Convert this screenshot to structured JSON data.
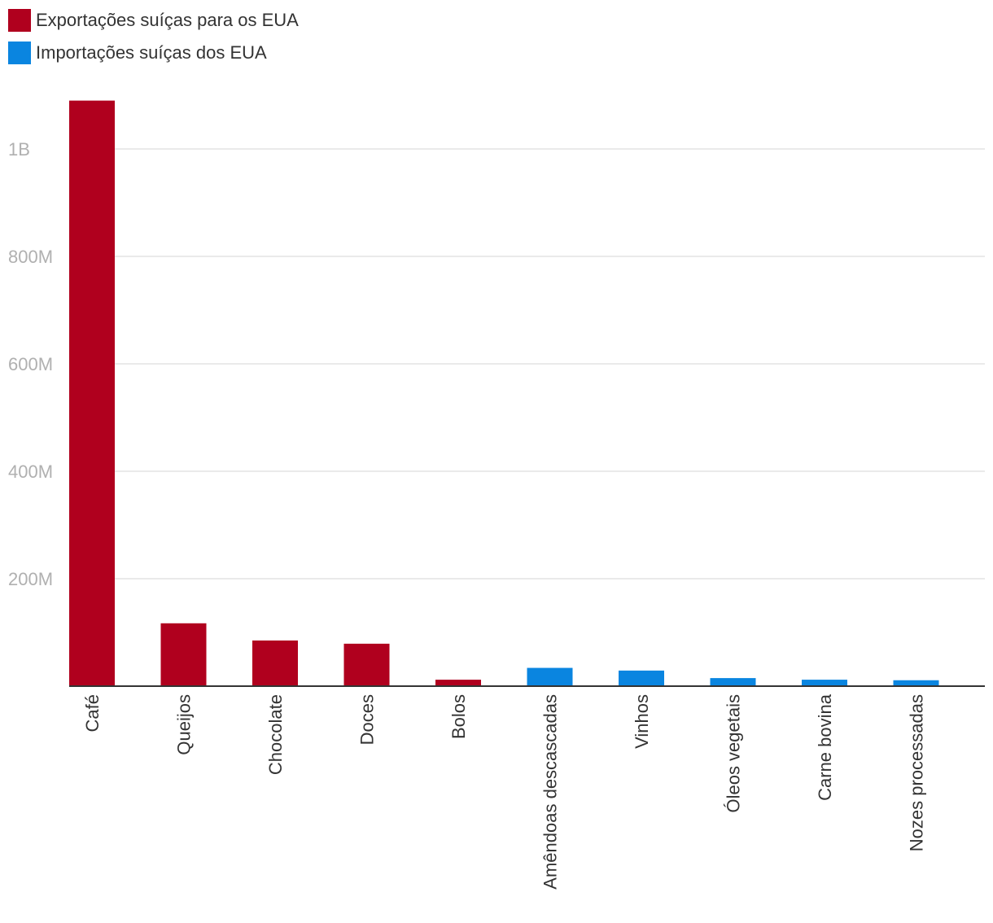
{
  "chart_data": {
    "type": "bar",
    "title": "",
    "xlabel": "",
    "ylabel": "",
    "ylim": [
      0,
      1090000000
    ],
    "yticks": [
      {
        "value": 200000000,
        "label": "200M"
      },
      {
        "value": 400000000,
        "label": "400M"
      },
      {
        "value": 600000000,
        "label": "600M"
      },
      {
        "value": 800000000,
        "label": "800M"
      },
      {
        "value": 1000000000,
        "label": "1B"
      }
    ],
    "series": [
      {
        "name": "Exportações suíças para os EUA",
        "color": "#b0001e",
        "categories": [
          "Café",
          "Queijos",
          "Chocolate",
          "Doces",
          "Bolos"
        ],
        "values": [
          1090000000,
          117000000,
          85000000,
          79000000,
          12000000
        ]
      },
      {
        "name": "Importações suíças dos EUA",
        "color": "#0a85e0",
        "categories": [
          "Amêndoas descascadas",
          "Vinhos",
          "Óleos vegetais",
          "Carne bovina",
          "Nozes processadas"
        ],
        "values": [
          34000000,
          29000000,
          15000000,
          12000000,
          11000000
        ]
      }
    ],
    "legend_position": "top-left",
    "grid": true
  }
}
